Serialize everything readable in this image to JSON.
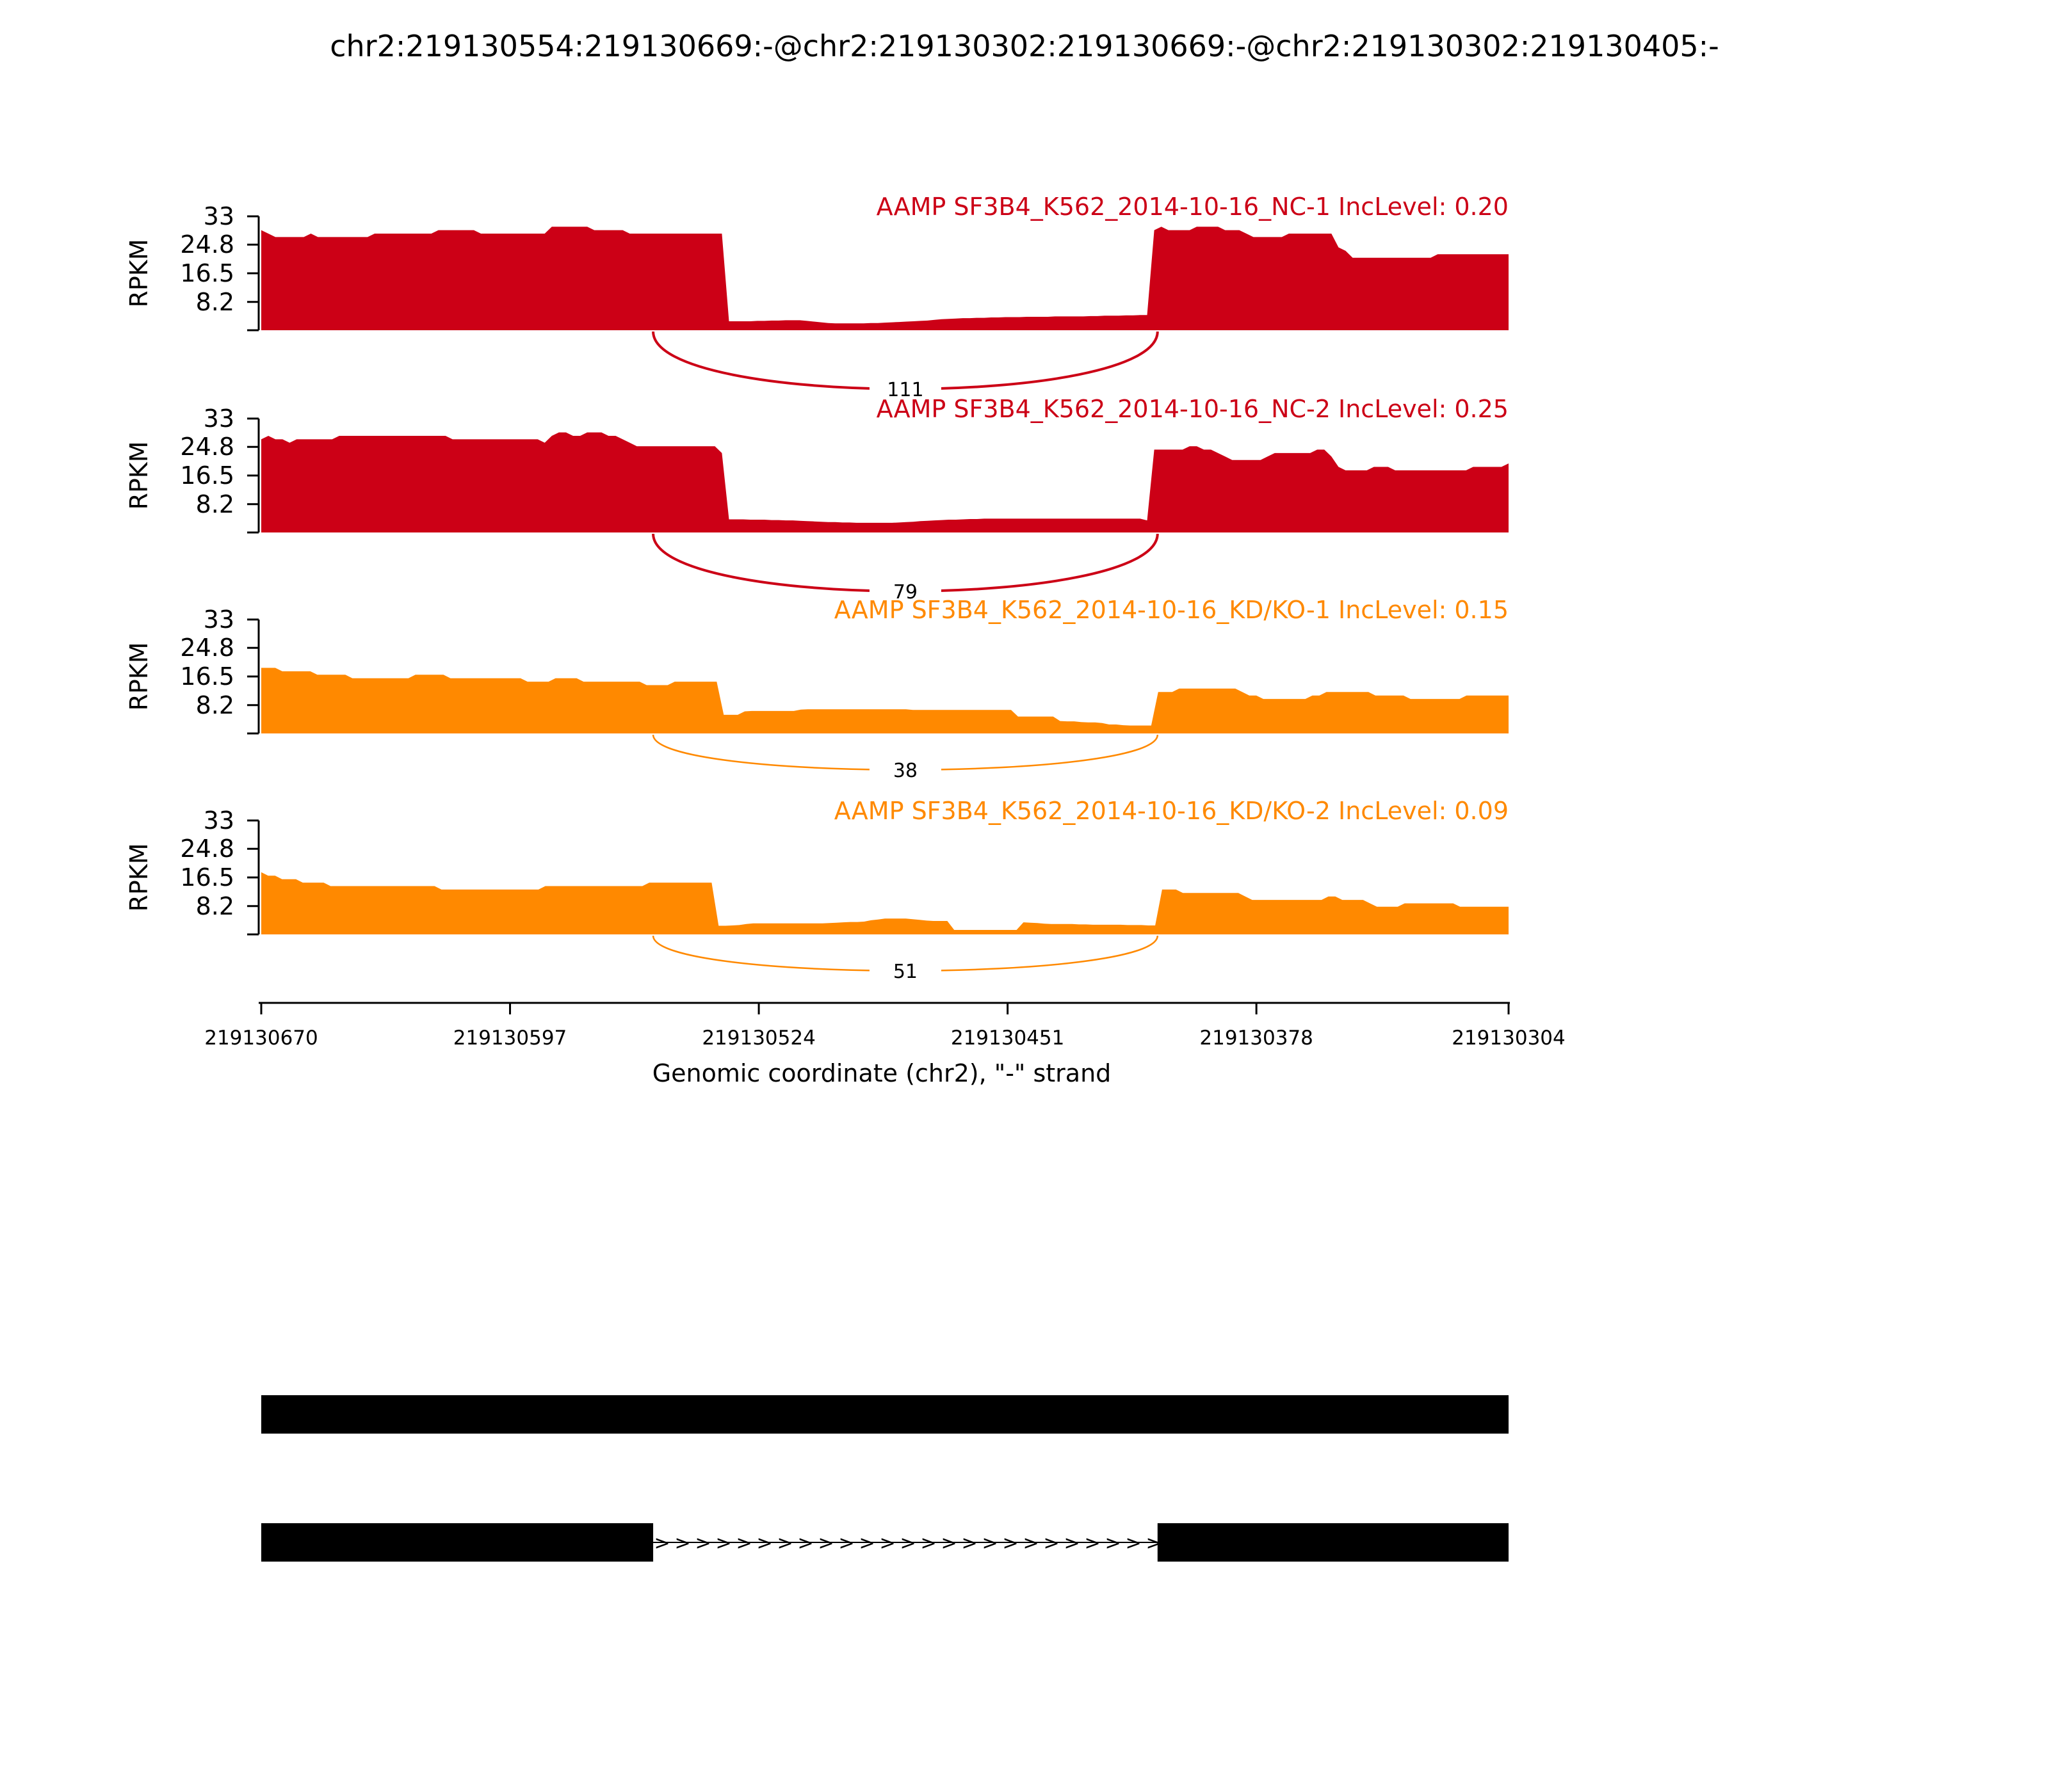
{
  "title": "chr2:219130554:219130669:-@chr2:219130302:219130669:-@chr2:219130302:219130405:-",
  "colors": {
    "nc": "#cc0016",
    "kd": "#ff8900",
    "structure": "#000000"
  },
  "chart_data": {
    "type": "area",
    "title": "chr2:219130554:219130669:-@chr2:219130302:219130669:-@chr2:219130302:219130405:-",
    "xlabel": "Genomic coordinate (chr2), \"-\" strand",
    "ylabel": "RPKM",
    "xlim": [
      219130670,
      219130304
    ],
    "ylim": [
      0,
      33
    ],
    "xticks": [
      219130670,
      219130597,
      219130524,
      219130451,
      219130378,
      219130304
    ],
    "xtick_labels": [
      "219130670",
      "219130597",
      "219130524",
      "219130451",
      "219130378",
      "219130304"
    ],
    "yticks": [
      0,
      8.2,
      16.5,
      24.8,
      33
    ],
    "ytick_labels": [
      "",
      "8.2",
      "16.5",
      "24.8",
      "33"
    ],
    "junction": {
      "start": 219130555,
      "end": 219130407
    },
    "tracks": [
      {
        "label": "AAMP SF3B4_K562_2014-10-16_NC-1 IncLevel: 0.20",
        "color_key": "nc",
        "junction_count": "111",
        "values": [
          29,
          28,
          27,
          27,
          27,
          27,
          27,
          28,
          27,
          27,
          27,
          27,
          27,
          27,
          27,
          27,
          28,
          28,
          28,
          28,
          28,
          28,
          28,
          28,
          28,
          29,
          29,
          29,
          29,
          29,
          29,
          28,
          28,
          28,
          28,
          28,
          28,
          28,
          28,
          28,
          28,
          30,
          30,
          30,
          30,
          30,
          30,
          29,
          29,
          29,
          29,
          29,
          28,
          28,
          28,
          28,
          28,
          28,
          28,
          28,
          28,
          28,
          28,
          28,
          28,
          28,
          2.6,
          2.6,
          2.6,
          2.6,
          2.7,
          2.7,
          2.8,
          2.8,
          2.9,
          2.9,
          2.9,
          2.7,
          2.5,
          2.3,
          2.1,
          2.0,
          2.0,
          2.0,
          2.0,
          2.0,
          2.1,
          2.1,
          2.2,
          2.3,
          2.4,
          2.5,
          2.6,
          2.7,
          2.8,
          3.0,
          3.2,
          3.3,
          3.4,
          3.5,
          3.5,
          3.6,
          3.6,
          3.7,
          3.7,
          3.8,
          3.8,
          3.8,
          3.9,
          3.9,
          3.9,
          3.9,
          4.0,
          4.0,
          4.0,
          4.0,
          4.0,
          4.1,
          4.1,
          4.2,
          4.2,
          4.2,
          4.3,
          4.3,
          4.4,
          4.4,
          29,
          30,
          29,
          29,
          29,
          29,
          30,
          30,
          30,
          30,
          29,
          29,
          29,
          28,
          27,
          27,
          27,
          27,
          27,
          28,
          28,
          28,
          28,
          28,
          28,
          28,
          24,
          23,
          21,
          21,
          21,
          21,
          21,
          21,
          21,
          21,
          21,
          21,
          21,
          21,
          22,
          22,
          22,
          22,
          22,
          22,
          22,
          22,
          22,
          22,
          22
        ]
      },
      {
        "label": "AAMP SF3B4_K562_2014-10-16_NC-2 IncLevel: 0.25",
        "color_key": "nc",
        "junction_count": "79",
        "values": [
          27,
          28,
          27,
          27,
          26,
          27,
          27,
          27,
          27,
          27,
          27,
          28,
          28,
          28,
          28,
          28,
          28,
          28,
          28,
          28,
          28,
          28,
          28,
          28,
          28,
          28,
          28,
          27,
          27,
          27,
          27,
          27,
          27,
          27,
          27,
          27,
          27,
          27,
          27,
          27,
          26,
          28,
          29,
          29,
          28,
          28,
          29,
          29,
          29,
          28,
          28,
          27,
          26,
          25,
          25,
          25,
          25,
          25,
          25,
          25,
          25,
          25,
          25,
          25,
          25,
          23,
          3.8,
          3.8,
          3.8,
          3.7,
          3.7,
          3.7,
          3.6,
          3.6,
          3.5,
          3.5,
          3.4,
          3.3,
          3.2,
          3.1,
          3.0,
          3.0,
          2.9,
          2.9,
          2.8,
          2.8,
          2.8,
          2.8,
          2.8,
          2.8,
          2.9,
          3.0,
          3.1,
          3.3,
          3.4,
          3.5,
          3.6,
          3.7,
          3.7,
          3.8,
          3.9,
          3.9,
          4.0,
          4.0,
          4.0,
          4.0,
          4.0,
          4.0,
          4.0,
          4.0,
          4.0,
          4.0,
          4.0,
          4.0,
          4.0,
          4.0,
          4.0,
          4.0,
          4.0,
          4.0,
          4.0,
          4.0,
          4.0,
          4.0,
          4.0,
          3.5,
          24,
          24,
          24,
          24,
          24,
          25,
          25,
          24,
          24,
          23,
          22,
          21,
          21,
          21,
          21,
          21,
          22,
          23,
          23,
          23,
          23,
          23,
          23,
          24,
          24,
          22,
          19,
          18,
          18,
          18,
          18,
          19,
          19,
          19,
          18,
          18,
          18,
          18,
          18,
          18,
          18,
          18,
          18,
          18,
          18,
          19,
          19,
          19,
          19,
          19,
          20
        ]
      },
      {
        "label": "AAMP SF3B4_K562_2014-10-16_KD/KO-1 IncLevel: 0.15",
        "color_key": "kd",
        "junction_count": "38",
        "values": [
          19,
          19,
          19,
          18,
          18,
          18,
          18,
          18,
          17,
          17,
          17,
          17,
          17,
          16,
          16,
          16,
          16,
          16,
          16,
          16,
          16,
          16,
          17,
          17,
          17,
          17,
          17,
          16,
          16,
          16,
          16,
          16,
          16,
          16,
          16,
          16,
          16,
          16,
          15,
          15,
          15,
          15,
          16,
          16,
          16,
          16,
          15,
          15,
          15,
          15,
          15,
          15,
          15,
          15,
          15,
          14,
          14,
          14,
          14,
          15,
          15,
          15,
          15,
          15,
          15,
          15,
          5.4,
          5.4,
          5.4,
          6.4,
          6.5,
          6.5,
          6.5,
          6.5,
          6.5,
          6.5,
          6.5,
          6.9,
          7.0,
          7.0,
          7.0,
          7.0,
          7.0,
          7.0,
          7.0,
          7.0,
          7.0,
          7.0,
          7.0,
          7.0,
          7.0,
          7.0,
          7.0,
          6.8,
          6.8,
          6.8,
          6.8,
          6.8,
          6.8,
          6.8,
          6.8,
          6.8,
          6.8,
          6.8,
          6.8,
          6.8,
          6.8,
          6.8,
          4.9,
          4.9,
          4.9,
          4.9,
          4.9,
          4.9,
          3.6,
          3.5,
          3.5,
          3.3,
          3.2,
          3.2,
          3.0,
          2.6,
          2.6,
          2.4,
          2.3,
          2.3,
          2.3,
          2.3,
          12,
          12,
          12,
          13,
          13,
          13,
          13,
          13,
          13,
          13,
          13,
          13,
          12,
          11,
          11,
          10,
          10,
          10,
          10,
          10,
          10,
          10,
          11,
          11,
          12,
          12,
          12,
          12,
          12,
          12,
          12,
          11,
          11,
          11,
          11,
          11,
          10,
          10,
          10,
          10,
          10,
          10,
          10,
          10,
          11,
          11,
          11,
          11,
          11,
          11,
          11
        ]
      },
      {
        "label": "AAMP SF3B4_K562_2014-10-16_KD/KO-2 IncLevel: 0.09",
        "color_key": "kd",
        "junction_count": "51",
        "values": [
          18,
          17,
          17,
          16,
          16,
          16,
          15,
          15,
          15,
          15,
          14,
          14,
          14,
          14,
          14,
          14,
          14,
          14,
          14,
          14,
          14,
          14,
          14,
          14,
          14,
          14,
          13,
          13,
          13,
          13,
          13,
          13,
          13,
          13,
          13,
          13,
          13,
          13,
          13,
          13,
          13,
          14,
          14,
          14,
          14,
          14,
          14,
          14,
          14,
          14,
          14,
          14,
          14,
          14,
          14,
          14,
          15,
          15,
          15,
          15,
          15,
          15,
          15,
          15,
          15,
          15,
          2.5,
          2.5,
          2.6,
          2.7,
          3.0,
          3.2,
          3.2,
          3.2,
          3.2,
          3.2,
          3.2,
          3.2,
          3.2,
          3.2,
          3.2,
          3.2,
          3.3,
          3.4,
          3.5,
          3.6,
          3.6,
          3.7,
          4.1,
          4.3,
          4.6,
          4.6,
          4.6,
          4.6,
          4.4,
          4.2,
          4.0,
          3.9,
          3.9,
          3.9,
          1.3,
          1.3,
          1.3,
          1.3,
          1.3,
          1.3,
          1.3,
          1.3,
          1.3,
          1.3,
          3.5,
          3.4,
          3.3,
          3.1,
          3.0,
          3.0,
          3.0,
          3.0,
          2.9,
          2.9,
          2.8,
          2.8,
          2.8,
          2.8,
          2.8,
          2.7,
          2.7,
          2.7,
          2.6,
          2.6,
          13,
          13,
          13,
          12,
          12,
          12,
          12,
          12,
          12,
          12,
          12,
          12,
          11,
          10,
          10,
          10,
          10,
          10,
          10,
          10,
          10,
          10,
          10,
          10,
          11,
          11,
          10,
          10,
          10,
          10,
          9,
          8,
          8,
          8,
          8,
          9,
          9,
          9,
          9,
          9,
          9,
          9,
          9,
          8,
          8,
          8,
          8,
          8,
          8,
          8,
          8
        ]
      }
    ],
    "isoforms": [
      {
        "exons": [
          [
            219130670,
            219130304
          ]
        ]
      },
      {
        "exons": [
          [
            219130670,
            219130555
          ],
          [
            219130407,
            219130304
          ]
        ],
        "intron_arrow": ">"
      }
    ]
  }
}
